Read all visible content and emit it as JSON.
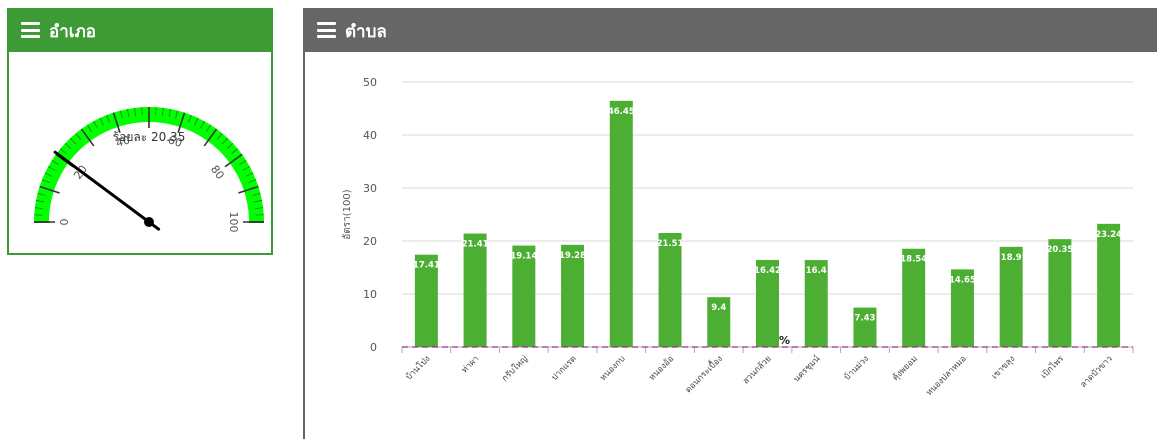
{
  "district_panel": {
    "title": "อำเภอ",
    "gauge": {
      "label": "ร้อยละ 20.35",
      "value": 20.35,
      "min": 0,
      "max": 100,
      "tick_labels": [
        "0",
        "20",
        "40",
        "60",
        "80",
        "100"
      ],
      "band_color": "#00ff00",
      "header_color": "#3d9a35"
    }
  },
  "subdistrict_panel": {
    "title": "ตำบล",
    "header_color": "#666666"
  },
  "chart_data": {
    "type": "bar",
    "categories": [
      "บ้านโป่ง",
      "ท่าผา",
      "กรับใหญ่",
      "ปากแรต",
      "หนองกบ",
      "หนองอ้อ",
      "ดอนกระเบื้อง",
      "สวนกล้วย",
      "นครชุมน์",
      "บ้านม่วง",
      "คุ้งพยอม",
      "หนองปลาหมอ",
      "เขาขลุง",
      "เบิกไพร",
      "ลาดบัวขาว"
    ],
    "values": [
      17.41,
      21.41,
      19.14,
      19.28,
      46.45,
      21.51,
      9.4,
      16.42,
      16.4,
      7.43,
      18.54,
      14.65,
      18.9,
      20.35,
      23.24
    ],
    "data_labels": [
      "17.41",
      "21.41",
      "19.14",
      "19.28",
      "46.45",
      "21.51",
      "9.4",
      "16.42",
      "16.4",
      "7.43",
      "18.54",
      "14.65",
      "18.9",
      "20.35",
      "23.24"
    ],
    "ylabel": "อัตรา(100)",
    "ylim": [
      0,
      50
    ],
    "yticks": [
      "0",
      "10",
      "20",
      "30",
      "40",
      "50"
    ],
    "target_line_label": "%",
    "target_value": 0,
    "bar_color": "#4caf34",
    "target_color": "#9c2a8c",
    "grid": true
  }
}
